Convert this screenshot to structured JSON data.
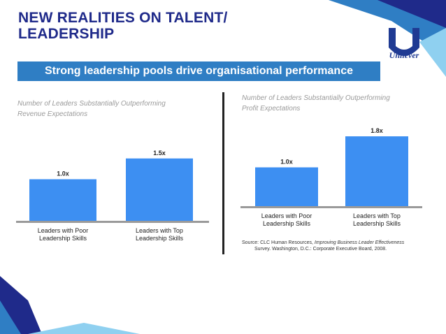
{
  "slide": {
    "title_line1": "NEW REALITIES ON TALENT/",
    "title_line2": "LEADERSHIP",
    "subtitle": "Strong leadership pools drive organisational performance",
    "logo_text": "Unilever",
    "source_line1_a": "Source: CLC Human Resources, ",
    "source_line1_b": "Improving Business Leader Effectiveness",
    "source_line2": "Survey. Washington, D.C.: Corporate Executive Board, 2008."
  },
  "chart_data": [
    {
      "type": "bar",
      "title_line1": "Number of Leaders Substantially Outperforming",
      "title_line2": "Revenue Expectations",
      "categories": [
        [
          "Leaders with Poor",
          "Leadership Skills"
        ],
        [
          "Leaders with Top",
          "Leadership Skills"
        ]
      ],
      "values": [
        1.0,
        1.5
      ],
      "labels": [
        "1.0x",
        "1.5x"
      ],
      "color": "#3d8ff2",
      "ylim": [
        0,
        2.0
      ]
    },
    {
      "type": "bar",
      "title_line1": "Number of Leaders Substantially Outperforming",
      "title_line2": "Profit Expectations",
      "categories": [
        [
          "Leaders with Poor",
          "Leadership Skills"
        ],
        [
          "Leaders with Top",
          "Leadership Skills"
        ]
      ],
      "values": [
        1.0,
        1.8
      ],
      "labels": [
        "1.0x",
        "1.8x"
      ],
      "color": "#3d8ff2",
      "ylim": [
        0,
        2.0
      ]
    }
  ],
  "colors": {
    "title": "#1f2a8a",
    "banner": "#2f7ec4",
    "bar": "#3d8ff2",
    "baseline": "#9a9a9a"
  }
}
